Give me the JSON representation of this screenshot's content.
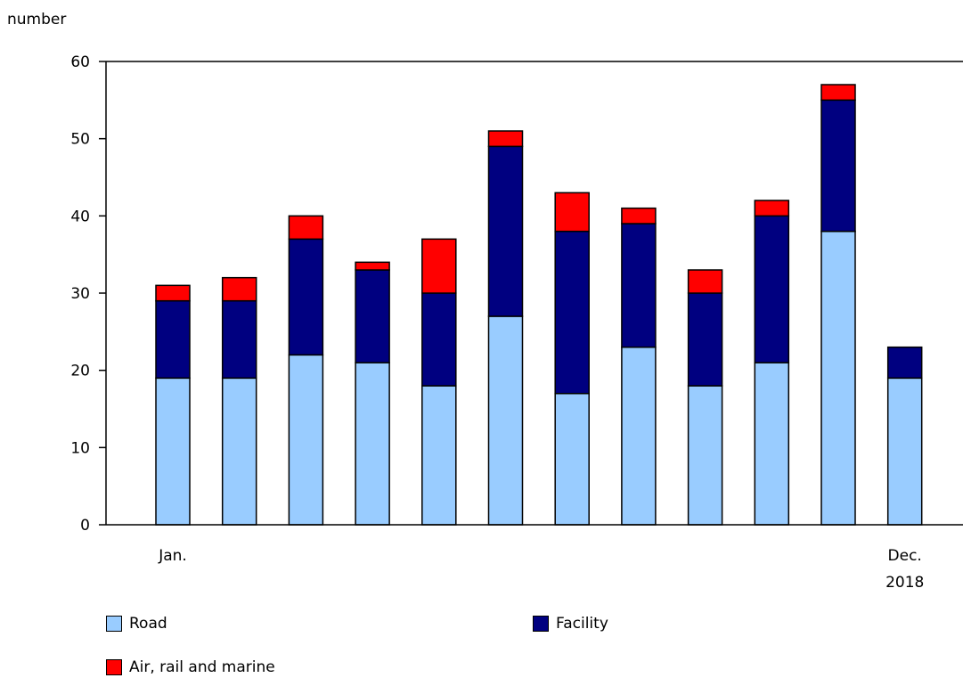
{
  "chart_data": {
    "type": "bar",
    "stacked": true,
    "ylabel": "number",
    "ylim": [
      0,
      60
    ],
    "yticks": [
      0,
      10,
      20,
      30,
      40,
      50,
      60
    ],
    "categories": [
      "Jan.",
      "",
      "",
      "",
      "",
      "",
      "",
      "",
      "",
      "",
      "",
      "Dec."
    ],
    "xaxis_year_label": "2018",
    "series": [
      {
        "name": "Road",
        "color": "#99ccff",
        "values": [
          19,
          19,
          22,
          21,
          18,
          27,
          17,
          23,
          18,
          21,
          38,
          19
        ]
      },
      {
        "name": "Facility",
        "color": "#000080",
        "values": [
          10,
          10,
          15,
          12,
          12,
          22,
          21,
          16,
          12,
          19,
          17,
          4
        ]
      },
      {
        "name": "Air, rail and marine",
        "color": "#ff0000",
        "values": [
          2,
          3,
          3,
          1,
          7,
          2,
          5,
          2,
          3,
          2,
          2,
          0
        ]
      }
    ],
    "legend_position": "bottom",
    "grid": false
  }
}
